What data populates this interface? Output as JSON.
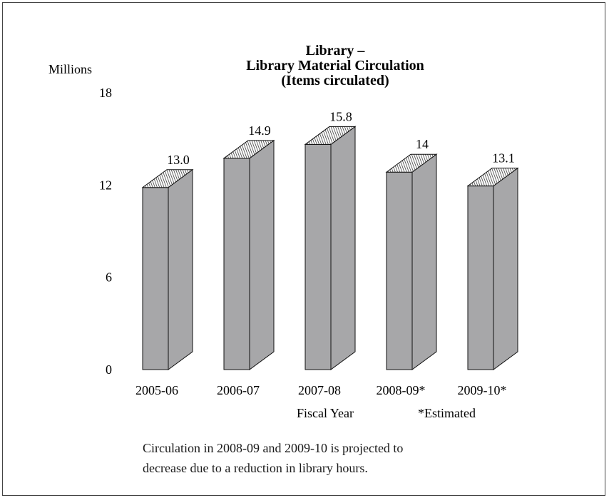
{
  "chart_data": {
    "type": "bar",
    "title_lines": [
      "Library –",
      "Library Material Circulation",
      "(Items circulated)"
    ],
    "ylabel": "Millions",
    "xlabel": "Fiscal Year",
    "footnote_marker": "*Estimated",
    "categories": [
      "2005-06",
      "2006-07",
      "2007-08",
      "2008-09*",
      "2009-10*"
    ],
    "values": [
      13.0,
      14.9,
      15.8,
      14,
      13.1
    ],
    "value_labels": [
      "13.0",
      "14.9",
      "15.8",
      "14",
      "13.1"
    ],
    "ylim": [
      0,
      18
    ],
    "yticks": [
      "0",
      "6",
      "12",
      "18"
    ],
    "bar_color": "#a7a7a9",
    "grid": false
  },
  "note": {
    "line1": "Circulation in 2008-09 and 2009-10 is projected to",
    "line2": "decrease due to a reduction in library hours."
  }
}
